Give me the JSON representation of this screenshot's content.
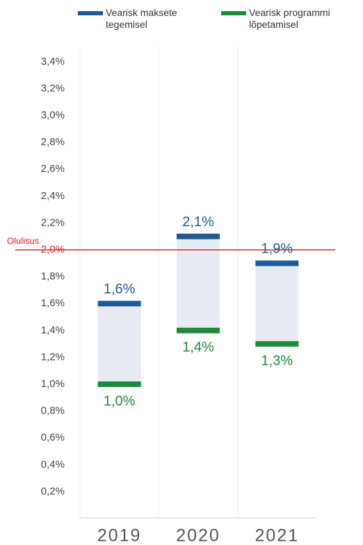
{
  "chart_data": {
    "type": "range",
    "categories": [
      "2019",
      "2020",
      "2021"
    ],
    "series": [
      {
        "name": "Vearisk maksete tegemisel",
        "color": "#1f5a96",
        "values": [
          1.6,
          2.1,
          1.9
        ],
        "value_labels": [
          "1,6%",
          "2,1%",
          "1,9%"
        ]
      },
      {
        "name": "Vearisk programmi lõpetamisel",
        "color": "#1e8a3c",
        "values": [
          1.0,
          1.4,
          1.3
        ],
        "value_labels": [
          "1,0%",
          "1,4%",
          "1,3%"
        ]
      }
    ],
    "band_color": "#e8eaf4",
    "threshold": {
      "value": 2.0,
      "label": "Olulisus",
      "color": "#d62728"
    },
    "ylim": [
      0,
      3.5
    ],
    "yticks": [
      {
        "value": 0.2,
        "label": "0,2%"
      },
      {
        "value": 0.4,
        "label": "0,4%"
      },
      {
        "value": 0.6,
        "label": "0,6%"
      },
      {
        "value": 0.8,
        "label": "0,8%"
      },
      {
        "value": 1.0,
        "label": "1,0%"
      },
      {
        "value": 1.2,
        "label": "1,2%"
      },
      {
        "value": 1.4,
        "label": "1,4%"
      },
      {
        "value": 1.6,
        "label": "1,6%"
      },
      {
        "value": 1.8,
        "label": "1,8%"
      },
      {
        "value": 2.0,
        "label": "2,0%"
      },
      {
        "value": 2.2,
        "label": "2,2%"
      },
      {
        "value": 2.4,
        "label": "2,4%"
      },
      {
        "value": 2.6,
        "label": "2,6%"
      },
      {
        "value": 2.8,
        "label": "2,8%"
      },
      {
        "value": 3.0,
        "label": "3,0%"
      },
      {
        "value": 3.2,
        "label": "3,2%"
      },
      {
        "value": 3.4,
        "label": "3,4%"
      }
    ]
  }
}
